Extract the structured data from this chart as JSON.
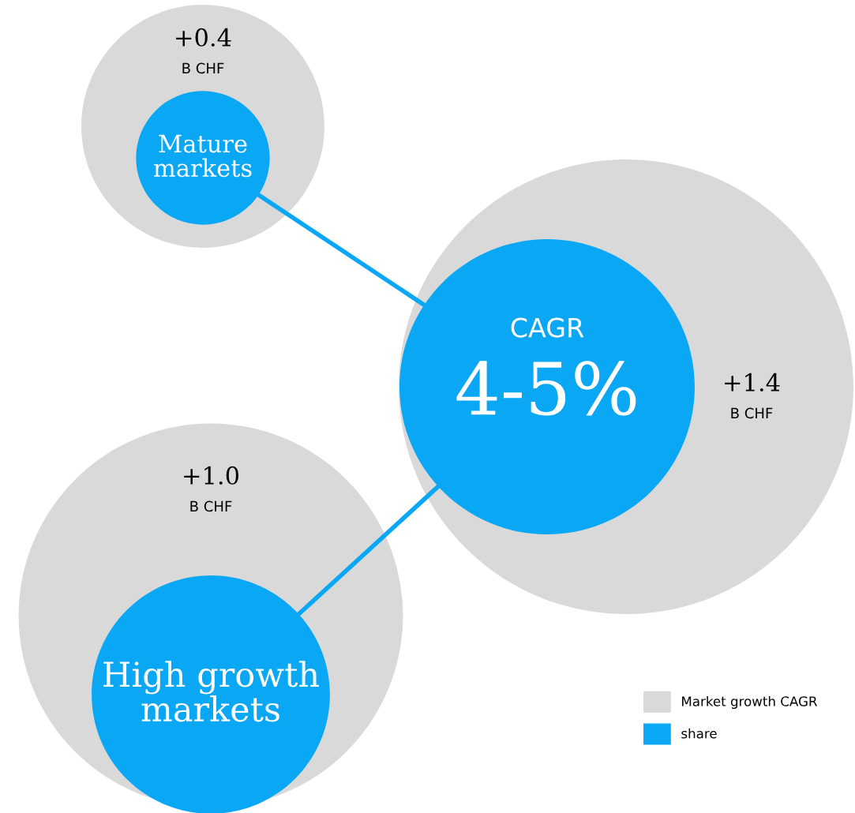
{
  "chart_data": {
    "type": "other",
    "categories": [
      "Mature markets",
      "High growth markets",
      "CAGR"
    ],
    "series": [
      {
        "name": "Market growth CAGR",
        "color": "#d9d9d9",
        "values": [
          0.4,
          1.0,
          1.4
        ],
        "value_labels": [
          "+0.4\nB CHF",
          "+1.0\nB CHF",
          "+1.4\nB CHF"
        ]
      },
      {
        "name": "share",
        "color": "#0aa7f5",
        "values": [
          null,
          null,
          null
        ]
      }
    ],
    "annotations": [
      "4-5%"
    ],
    "legend": "bottom right"
  }
}
